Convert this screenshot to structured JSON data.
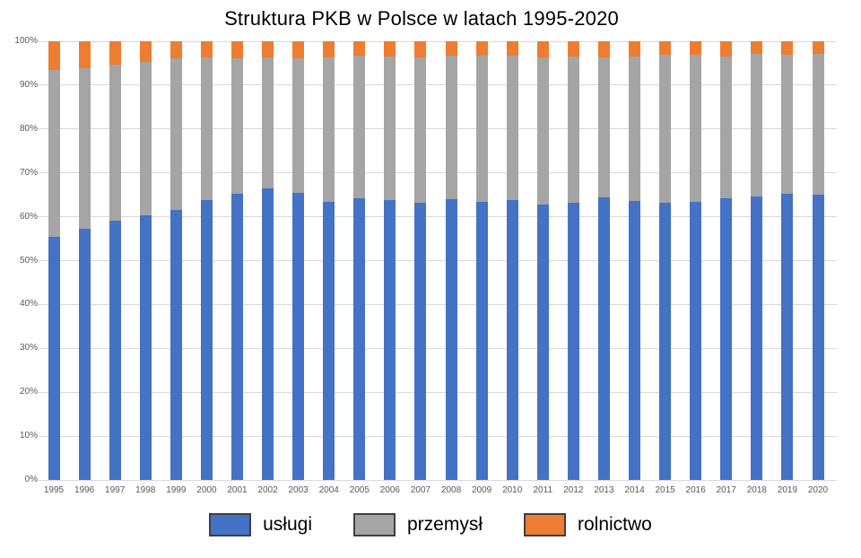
{
  "title": "Struktura PKB w Polsce w latach 1995-2020",
  "colors": {
    "uslugi": "#4472C4",
    "przemysl": "#A5A5A5",
    "rolnictwo": "#ED7D31",
    "gridline": "#D9D9D9",
    "axis_label": "#595959",
    "legend_border": "#404040",
    "background": "#FFFFFF"
  },
  "y_axis": {
    "tick_labels": [
      "0%",
      "10%",
      "20%",
      "30%",
      "40%",
      "50%",
      "60%",
      "70%",
      "80%",
      "90%",
      "100%"
    ],
    "min": 0,
    "max": 100,
    "step": 10
  },
  "legend": {
    "items": [
      {
        "label": "usługi",
        "color": "#4472C4"
      },
      {
        "label": "przemysł",
        "color": "#A5A5A5"
      },
      {
        "label": "rolnictwo",
        "color": "#ED7D31"
      }
    ],
    "position": "bottom"
  },
  "chart_data": {
    "type": "bar",
    "stacked": true,
    "normalized_to_100": true,
    "title": "Struktura PKB w Polsce w latach 1995-2020",
    "xlabel": "",
    "ylabel": "",
    "ylim": [
      0,
      100
    ],
    "grid": true,
    "legend_position": "bottom",
    "categories": [
      "1995",
      "1996",
      "1997",
      "1998",
      "1999",
      "2000",
      "2001",
      "2002",
      "2003",
      "2004",
      "2005",
      "2006",
      "2007",
      "2008",
      "2009",
      "2010",
      "2011",
      "2012",
      "2013",
      "2014",
      "2015",
      "2016",
      "2017",
      "2018",
      "2019",
      "2020"
    ],
    "series": [
      {
        "name": "usługi",
        "color": "#4472C4",
        "values": [
          55.5,
          57.2,
          59.1,
          60.4,
          61.6,
          63.8,
          65.3,
          66.5,
          65.5,
          63.5,
          64.2,
          63.8,
          63.2,
          64.0,
          63.5,
          63.8,
          62.7,
          63.2,
          64.4,
          63.6,
          63.2,
          63.4,
          64.2,
          64.7,
          65.3,
          65.0
        ]
      },
      {
        "name": "przemysł",
        "color": "#A5A5A5",
        "values": [
          37.9,
          36.7,
          35.6,
          34.9,
          34.5,
          32.6,
          30.8,
          29.9,
          30.7,
          32.8,
          32.6,
          32.7,
          33.2,
          32.7,
          33.2,
          32.9,
          33.7,
          33.3,
          32.0,
          32.9,
          33.7,
          33.5,
          32.3,
          32.4,
          31.6,
          32.2
        ]
      },
      {
        "name": "rolnictwo",
        "color": "#ED7D31",
        "values": [
          6.6,
          6.1,
          5.3,
          4.7,
          3.9,
          3.6,
          3.9,
          3.6,
          3.8,
          3.7,
          3.2,
          3.5,
          3.6,
          3.3,
          3.3,
          3.3,
          3.6,
          3.5,
          3.6,
          3.5,
          3.1,
          3.1,
          3.5,
          2.9,
          3.1,
          2.8
        ]
      }
    ]
  }
}
